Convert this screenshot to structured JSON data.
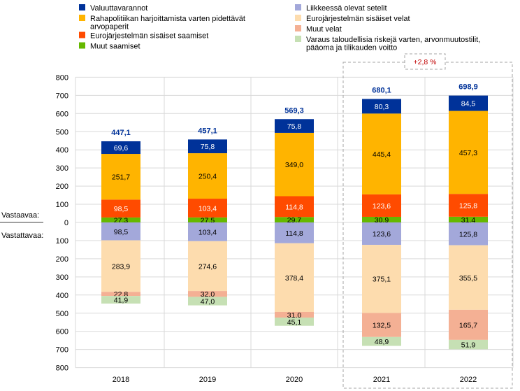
{
  "chart_data": {
    "type": "bar",
    "stacked": true,
    "categories": [
      "2018",
      "2019",
      "2020",
      "2021",
      "2022"
    ],
    "ylim": [
      -800,
      800
    ],
    "yticks": [
      "800",
      "700",
      "600",
      "500",
      "400",
      "300",
      "200",
      "100",
      "0",
      "100",
      "200",
      "300",
      "400",
      "500",
      "600",
      "700",
      "800"
    ],
    "y_side_labels": {
      "assets": "Vastaavaa:",
      "liabilities": "Vastattavaa:"
    },
    "grid": true,
    "legend_position": "top",
    "assets_series": [
      {
        "name": "Muut saamiset",
        "color": "#65b800",
        "values": [
          27.3,
          27.5,
          29.7,
          30.9,
          31.4
        ],
        "labels": [
          "27,3",
          "27,5",
          "29,7",
          "30,9",
          "31,4"
        ]
      },
      {
        "name": "Eurojärjestelmän sisäiset saamiset",
        "color": "#ff4b00",
        "values": [
          98.5,
          103.4,
          114.8,
          123.6,
          125.8
        ],
        "labels": [
          "98,5",
          "103,4",
          "114,8",
          "123,6",
          "125,8"
        ]
      },
      {
        "name": "Rahapolitiikan harjoittamista varten pidettävät arvopaperit",
        "color": "#ffb400",
        "values": [
          251.7,
          250.4,
          349.0,
          445.4,
          457.3
        ],
        "labels": [
          "251,7",
          "250,4",
          "349,0",
          "445,4",
          "457,3"
        ]
      },
      {
        "name": "Valuuttavarannot",
        "color": "#003299",
        "values": [
          69.6,
          75.8,
          75.8,
          80.3,
          84.5
        ],
        "labels": [
          "69,6",
          "75,8",
          "75,8",
          "80,3",
          "84,5"
        ]
      }
    ],
    "liabilities_series": [
      {
        "name": "Liikkeessä olevat setelit",
        "color": "#a3a8da",
        "values": [
          98.5,
          103.4,
          114.8,
          123.6,
          125.8
        ],
        "labels": [
          "98,5",
          "103,4",
          "114,8",
          "123,6",
          "125,8"
        ]
      },
      {
        "name": "Eurojärjestelmän sisäiset velat",
        "color": "#fddcae",
        "values": [
          283.9,
          274.6,
          378.4,
          375.1,
          355.5
        ],
        "labels": [
          "283,9",
          "274,6",
          "378,4",
          "375,1",
          "355,5"
        ]
      },
      {
        "name": "Muut velat",
        "color": "#f4b094",
        "values": [
          22.8,
          32.0,
          31.0,
          132.5,
          165.7
        ],
        "labels": [
          "22,8",
          "32,0",
          "31,0",
          "132,5",
          "165,7"
        ]
      },
      {
        "name": "Varaus taloudellisia riskejä varten, arvonmuutostilit, pääoma ja tilikauden voitto",
        "color": "#c6e0b4",
        "values": [
          41.9,
          47.0,
          45.1,
          48.9,
          51.9
        ],
        "labels": [
          "41,9",
          "47,0",
          "45,1",
          "48,9",
          "51,9"
        ]
      }
    ],
    "totals": [
      447.1,
      457.1,
      569.3,
      680.1,
      698.9
    ],
    "total_labels": [
      "447,1",
      "457,1",
      "569,3",
      "680,1",
      "698,9"
    ],
    "annotation": "+2,8 %"
  },
  "legend": {
    "left": [
      {
        "name": "Valuuttavarannot",
        "color": "#003299",
        "lines": [
          "Valuuttavarannot"
        ]
      },
      {
        "name": "Rahapolitiikan harjoittamista varten pidettävät arvopaperit",
        "color": "#ffb400",
        "lines": [
          "Rahapolitiikan harjoittamista varten pidettävät",
          "arvopaperit"
        ]
      },
      {
        "name": "Eurojärjestelmän sisäiset saamiset",
        "color": "#ff4b00",
        "lines": [
          "Eurojärjestelmän sisäiset saamiset"
        ]
      },
      {
        "name": "Muut saamiset",
        "color": "#65b800",
        "lines": [
          "Muut saamiset"
        ]
      }
    ],
    "right": [
      {
        "name": "Liikkeessä olevat setelit",
        "color": "#a3a8da",
        "lines": [
          "Liikkeessä olevat setelit"
        ]
      },
      {
        "name": "Eurojärjestelmän sisäiset velat",
        "color": "#fddcae",
        "lines": [
          "Eurojärjestelmän sisäiset velat"
        ]
      },
      {
        "name": "Muut velat",
        "color": "#f4b094",
        "lines": [
          "Muut velat"
        ]
      },
      {
        "name": "Varaus taloudellisia riskejä varten, arvonmuutostilit, pääoma ja tilikauden voitto",
        "color": "#c6e0b4",
        "lines": [
          "Varaus taloudellisia riskejä varten, arvonmuutostilit,",
          "pääoma ja tilikauden voitto"
        ]
      }
    ]
  }
}
